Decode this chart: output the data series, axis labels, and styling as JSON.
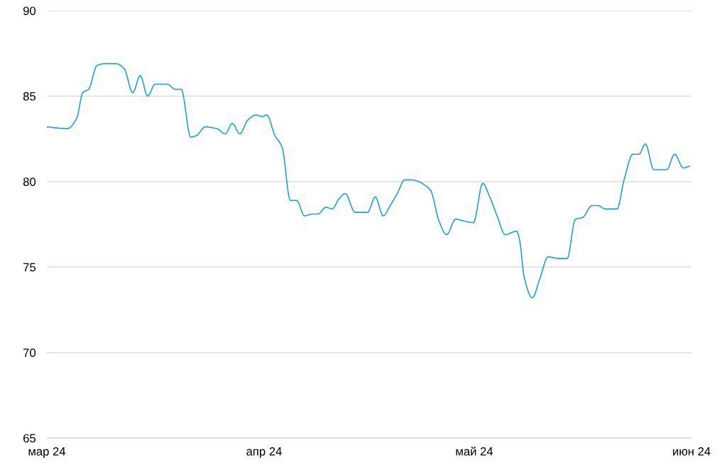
{
  "chart_data": {
    "type": "line",
    "x": [
      "2024-03-01",
      "2024-03-03T22:00",
      "2024-03-05T06:00",
      "2024-03-06T03:00",
      "2024-03-06T23:00",
      "2024-03-08T04:00",
      "2024-03-09T08:00",
      "2024-03-10T21:00",
      "2024-03-12T01:00",
      "2024-03-13T06:00",
      "2024-03-14T08:00",
      "2024-03-15T09:00",
      "2024-03-16T11:00",
      "2024-03-18T04:00",
      "2024-03-19T08:00",
      "2024-03-20T04:00",
      "2024-03-21T13:00",
      "2024-03-22T09:00",
      "2024-03-23T14:00",
      "2024-03-25T06:00",
      "2024-03-26T11:00",
      "2024-03-27T11:00",
      "2024-03-28T13:00",
      "2024-03-29T16:00",
      "2024-03-30T21:00",
      "2024-03-31T17:00",
      "2024-04-01T09:00",
      "2024-04-02T13:00",
      "2024-04-03T14:00",
      "2024-04-04T18:00",
      "2024-04-05T15:00",
      "2024-04-06T19:00",
      "2024-04-07T20:00",
      "2024-04-08T16:00",
      "2024-04-09T20:00",
      "2024-04-10T17:00",
      "2024-04-11T17:00",
      "2024-04-12T14:00",
      "2024-04-14",
      "2024-04-14T22:00",
      "2024-04-15T18:00",
      "2024-04-16T21:00",
      "2024-04-18",
      "2024-04-19",
      "2024-04-20",
      "2024-04-21T02:00",
      "2024-04-22T01:00",
      "2024-04-23T02:00",
      "2024-04-23T22:00",
      "2024-04-24T18:00",
      "2024-04-25T23:00",
      "2024-04-27T01:00",
      "2024-04-28T08:00",
      "2024-04-29T12:00",
      "2024-04-30T21:00",
      "2024-05-02T05:00",
      "2024-05-03T05:00",
      "2024-05-04T06:00",
      "2024-05-05T10:00",
      "2024-05-07T01:00",
      "2024-05-07T11:00",
      "2024-05-08T03:00",
      "2024-05-09T07:00",
      "2024-05-10T08:00",
      "2024-05-11T13:00",
      "2024-05-13T01:00",
      "2024-05-14T06:00",
      "2024-05-15T10:00",
      "2024-05-16T11:00",
      "2024-05-17T19:00",
      "2024-05-18T16:00",
      "2024-05-19T16:00",
      "2024-05-20T17:00",
      "2024-05-21T09:00",
      "2024-05-22T09:00",
      "2024-05-23T15:00",
      "2024-05-24T12:00",
      "2024-05-25T10:00",
      "2024-05-26T15:00",
      "2024-05-27T15:00",
      "2024-05-28T11:00",
      "2024-05-29T14:00",
      "2024-05-30T20:00",
      "2024-05-31T17:00"
    ],
    "series": [
      {
        "color": "#1b9fe0",
        "values": [
          83.2,
          83.1,
          83.7,
          85.2,
          85.4,
          86.8,
          86.9,
          86.9,
          86.6,
          85.2,
          86.2,
          85.0,
          85.7,
          85.7,
          85.4,
          85.4,
          82.6,
          82.7,
          83.2,
          83.1,
          82.8,
          83.4,
          82.8,
          83.6,
          83.9,
          83.8,
          83.9,
          82.7,
          82.0,
          78.9,
          78.9,
          78.0,
          78.1,
          78.1,
          78.5,
          78.4,
          79.0,
          79.3,
          78.2,
          78.2,
          78.2,
          79.1,
          78.0,
          78.6,
          79.3,
          80.1,
          80.1,
          80.0,
          79.8,
          79.5,
          77.7,
          76.9,
          77.8,
          77.7,
          77.6,
          79.9,
          79.1,
          78.0,
          76.9,
          77.1,
          76.6,
          74.4,
          73.2,
          74.3,
          75.6,
          75.5,
          75.5,
          77.8,
          77.9,
          78.6,
          78.6,
          78.4,
          78.4,
          78.4,
          80.1,
          81.6,
          81.6,
          82.2,
          80.7,
          80.7,
          80.7,
          81.6,
          80.8,
          80.9
        ]
      }
    ],
    "xlim": [
      "2024-03-01",
      "2024-06-01"
    ],
    "xticks": [
      {
        "value": "2024-03-01",
        "label": "мар 24"
      },
      {
        "value": "2024-04-01",
        "label": "апр 24"
      },
      {
        "value": "2024-05-01",
        "label": "май 24"
      },
      {
        "value": "2024-06-01",
        "label": "июн 24"
      }
    ],
    "ylim": [
      65,
      90
    ],
    "yticks": [
      65,
      70,
      75,
      80,
      85,
      90
    ],
    "grid": "y"
  }
}
